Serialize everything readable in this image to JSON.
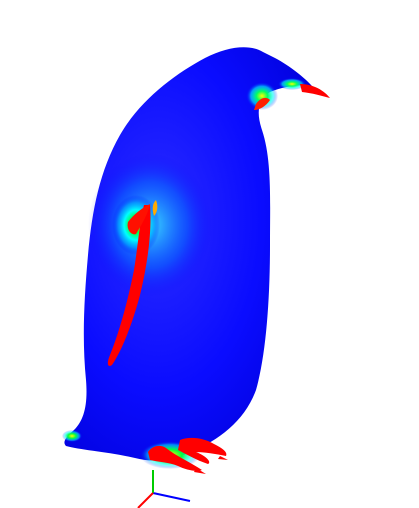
{
  "scene": {
    "background": "#ffffff",
    "model": "penguin-mesh",
    "colormap": [
      "#0000ff",
      "#00ffff",
      "#00ff00",
      "#ffff00",
      "#ff0000"
    ]
  },
  "axes_triad": {
    "x_color": "#0000ff",
    "y_color": "#00cc00",
    "z_color": "#ff0000"
  }
}
